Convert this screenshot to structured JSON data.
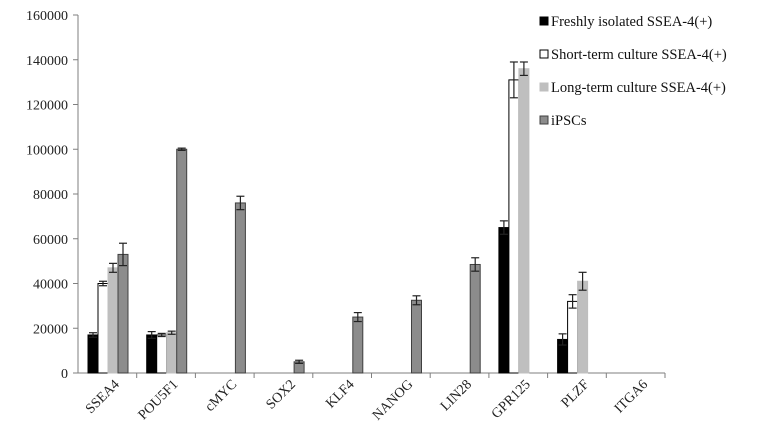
{
  "chart_data": {
    "type": "bar",
    "title": "",
    "xlabel": "",
    "ylabel": "",
    "ylim": [
      0,
      160000
    ],
    "yticks": [
      0,
      20000,
      40000,
      60000,
      80000,
      100000,
      120000,
      140000,
      160000
    ],
    "ytick_labels": [
      "0",
      "20000",
      "40000",
      "60000",
      "80000",
      "100000",
      "120000",
      "140000",
      "160000"
    ],
    "grid": false,
    "legend_position": "top-right",
    "categories": [
      "SSEA4",
      "POU5F1",
      "cMYC",
      "SOX2",
      "KLF4",
      "NANOG",
      "LIN28",
      "GPR125",
      "PLZF",
      "ITGA6"
    ],
    "series": [
      {
        "name": "Freshly isolated SSEA-4(+)",
        "color": "#000000",
        "stroke": "#000000",
        "values": [
          17000,
          17000,
          0,
          0,
          0,
          0,
          0,
          65000,
          15000,
          0
        ],
        "errors": [
          1000,
          1500,
          0,
          0,
          0,
          0,
          0,
          3000,
          2500,
          0
        ]
      },
      {
        "name": "Short-term culture SSEA-4(+)",
        "color": "#ffffff",
        "stroke": "#000000",
        "values": [
          40000,
          17000,
          0,
          0,
          0,
          0,
          0,
          131000,
          32000,
          0
        ],
        "errors": [
          1000,
          700,
          0,
          0,
          0,
          0,
          0,
          8000,
          3000,
          0
        ]
      },
      {
        "name": "Long-term culture SSEA-4(+)",
        "color": "#bfbfbf",
        "stroke": "#bfbfbf",
        "values": [
          47000,
          18000,
          0,
          0,
          0,
          0,
          0,
          136000,
          41000,
          0
        ],
        "errors": [
          2000,
          700,
          0,
          0,
          0,
          0,
          0,
          3000,
          4000,
          0
        ]
      },
      {
        "name": "iPSCs",
        "color": "#8c8c8c",
        "stroke": "#404040",
        "values": [
          53000,
          100000,
          76000,
          5000,
          25000,
          32500,
          48500,
          0,
          0,
          0
        ],
        "errors": [
          5000,
          500,
          3000,
          700,
          2000,
          2000,
          3000,
          0,
          0,
          0
        ]
      }
    ]
  }
}
